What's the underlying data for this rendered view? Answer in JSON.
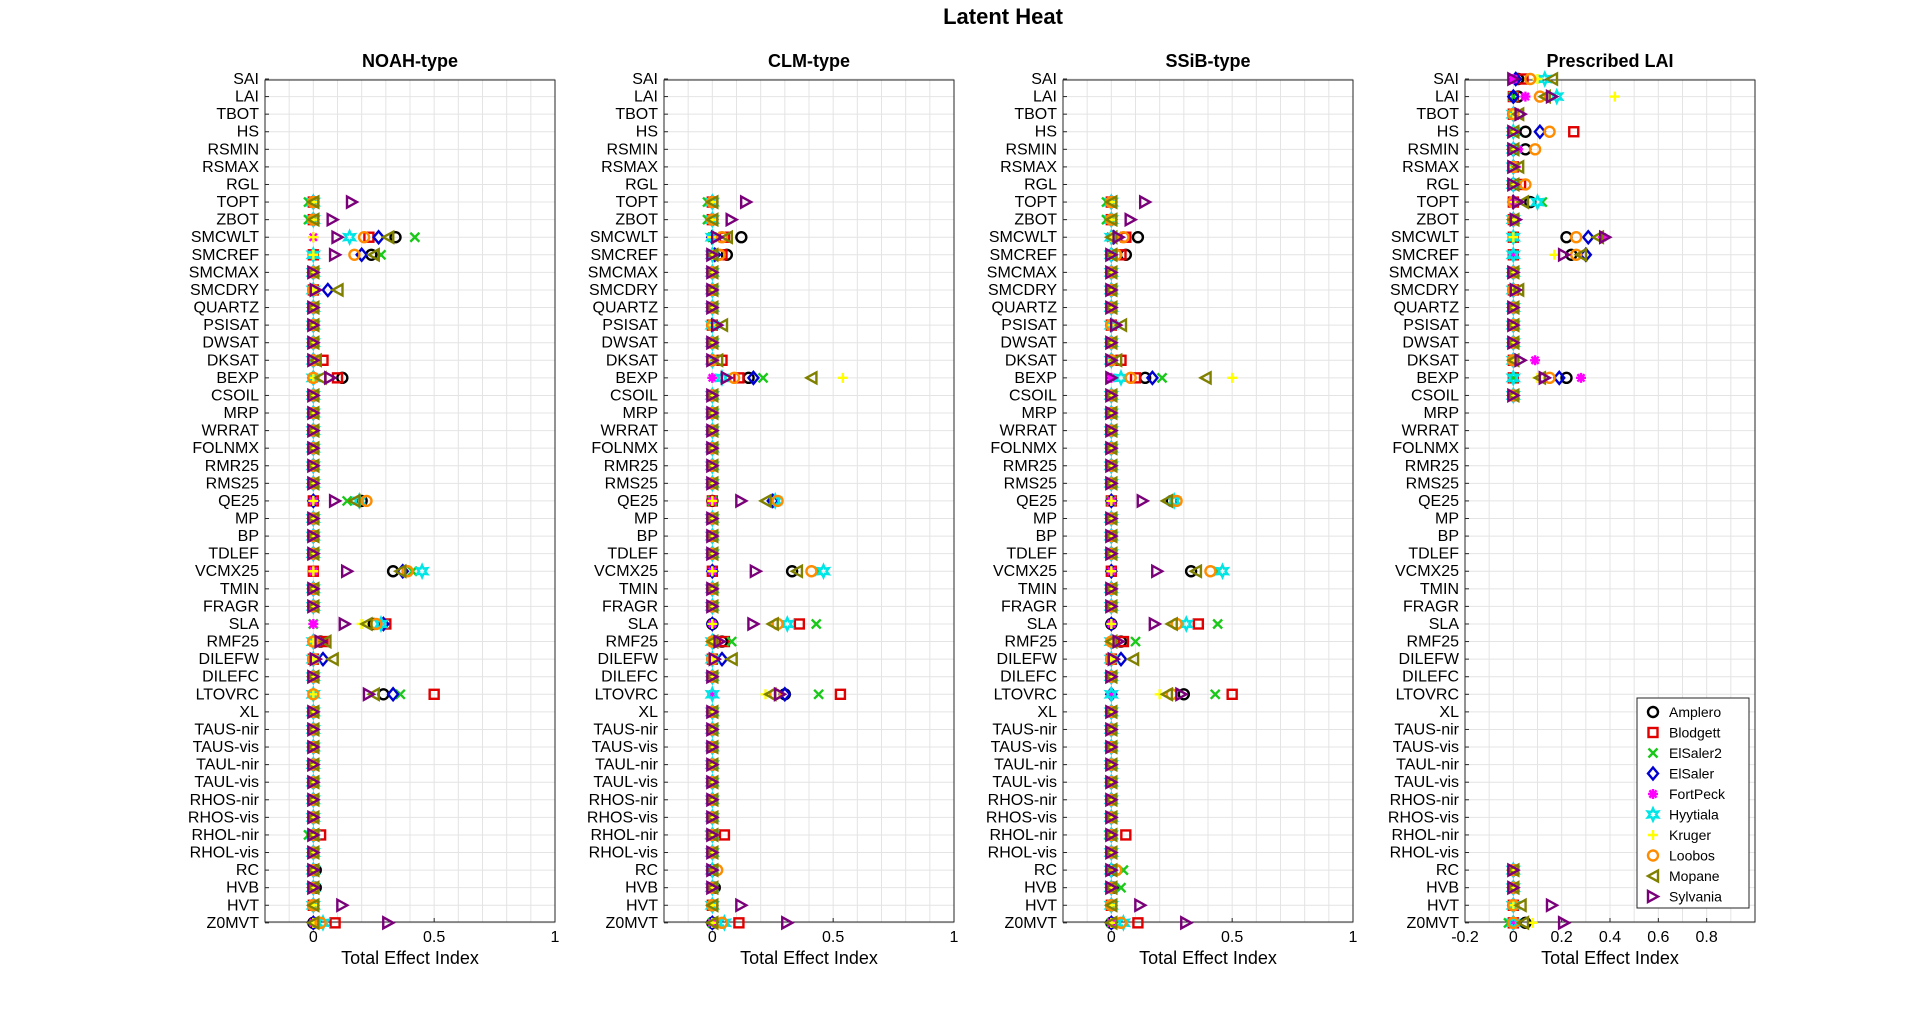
{
  "figure_title": "Latent Heat",
  "colors": {
    "Amplero": "#000000",
    "Blodgett": "#e00000",
    "ElSaler2": "#19c819",
    "ElSaler": "#0000d0",
    "FortPeck": "#ff00ff",
    "Hyytiala": "#00e6e6",
    "Kruger": "#ffff00",
    "Loobos": "#ff8c00",
    "Mopane": "#808000",
    "Sylvania": "#7a007a"
  },
  "markers": {
    "Amplero": "circle",
    "Blodgett": "square",
    "ElSaler2": "x",
    "ElSaler": "diamond",
    "FortPeck": "asterisk",
    "Hyytiala": "hexagram",
    "Kruger": "plus",
    "Loobos": "octagon",
    "Mopane": "triangle-left",
    "Sylvania": "triangle-right"
  },
  "legend": {
    "placement": "bottom-right of Prescribed LAI panel",
    "entries": [
      "Amplero",
      "Blodgett",
      "ElSaler2",
      "ElSaler",
      "FortPeck",
      "Hyytiala",
      "Kruger",
      "Loobos",
      "Mopane",
      "Sylvania"
    ]
  },
  "chart_data": [
    {
      "type": "scatter",
      "title": "NOAH-type",
      "xlabel": "Total Effect Index",
      "xlim": [
        -0.2,
        1
      ],
      "xticks": [
        0,
        0.5,
        1
      ],
      "xtick_labels": [
        "0",
        "0.5",
        "1"
      ],
      "show_ytick_labels": true,
      "grid": true,
      "categories": [
        "SAI",
        "LAI",
        "TBOT",
        "HS",
        "RSMIN",
        "RSMAX",
        "RGL",
        "TOPT",
        "ZBOT",
        "SMCWLT",
        "SMCREF",
        "SMCMAX",
        "SMCDRY",
        "QUARTZ",
        "PSISAT",
        "DWSAT",
        "DKSAT",
        "BEXP",
        "CSOIL",
        "MRP",
        "WRRAT",
        "FOLNMX",
        "RMR25",
        "RMS25",
        "QE25",
        "MP",
        "BP",
        "TDLEF",
        "VCMX25",
        "TMIN",
        "FRAGR",
        "SLA",
        "RMF25",
        "DILEFW",
        "DILEFC",
        "LTOVRC",
        "XL",
        "TAUS-nir",
        "TAUS-vis",
        "TAUL-nir",
        "TAUL-vis",
        "RHOS-nir",
        "RHOS-vis",
        "RHOL-nir",
        "RHOL-vis",
        "RC",
        "HVB",
        "HVT",
        "Z0MVT"
      ],
      "defaults": {
        "Amplero": 0,
        "Blodgett": 0,
        "ElSaler2": 0,
        "ElSaler": 0,
        "FortPeck": 0,
        "Hyytiala": 0,
        "Kruger": 0,
        "Loobos": 0,
        "Mopane": 0,
        "Sylvania": 0
      },
      "empty_categories": [
        "SAI",
        "LAI",
        "TBOT",
        "HS",
        "RSMIN",
        "RSMAX",
        "RGL"
      ],
      "values": {
        "TOPT": {
          "Sylvania": 0.16,
          "ElSaler2": -0.02,
          "Mopane": 0.0,
          "Loobos": 0.0
        },
        "ZBOT": {
          "Sylvania": 0.08,
          "ElSaler2": -0.02,
          "Mopane": 0.0,
          "Loobos": 0.0
        },
        "SMCWLT": {
          "Sylvania": 0.1,
          "Hyytiala": 0.15,
          "Loobos": 0.21,
          "Blodgett": 0.23,
          "ElSaler": 0.27,
          "Mopane": 0.31,
          "Amplero": 0.34,
          "ElSaler2": 0.42
        },
        "SMCREF": {
          "Sylvania": 0.09,
          "Loobos": 0.17,
          "ElSaler": 0.2,
          "Amplero": 0.24,
          "Mopane": 0.25,
          "ElSaler2": 0.28
        },
        "SMCDRY": {
          "ElSaler": 0.06,
          "Mopane": 0.1,
          "Sylvania": 0.01
        },
        "DKSAT": {
          "Blodgett": 0.04,
          "Mopane": 0.01
        },
        "BEXP": {
          "Mopane": 0.03,
          "Sylvania": 0.07,
          "Blodgett": 0.1,
          "Amplero": 0.12
        },
        "RMF25": {
          "Amplero": 0.03,
          "Blodgett": 0.04,
          "Mopane": 0.05,
          "Sylvania": 0.03
        },
        "DILEFW": {
          "Sylvania": 0.01,
          "ElSaler": 0.04,
          "Mopane": 0.08
        },
        "QE25": {
          "Sylvania": 0.09,
          "ElSaler2": 0.14,
          "Mopane": 0.17,
          "Hyytiala": 0.19,
          "Amplero": 0.2,
          "Loobos": 0.22
        },
        "VCMX25": {
          "Sylvania": 0.14,
          "Amplero": 0.33,
          "Mopane": 0.36,
          "ElSaler": 0.37,
          "Loobos": 0.39,
          "ElSaler2": 0.41,
          "Hyytiala": 0.45
        },
        "SLA": {
          "Sylvania": 0.13,
          "Kruger": 0.2,
          "Mopane": 0.22,
          "Amplero": 0.25,
          "Loobos": 0.26,
          "Hyytiala": 0.28,
          "ElSaler": 0.29,
          "Blodgett": 0.3
        },
        "LTOVRC": {
          "Sylvania": 0.23,
          "Mopane": 0.25,
          "Amplero": 0.29,
          "ElSaler": 0.33,
          "ElSaler2": 0.36,
          "Blodgett": 0.5
        },
        "RHOL-nir": {
          "Blodgett": 0.03,
          "ElSaler2": -0.02
        },
        "RC": {
          "Amplero": 0.01
        },
        "HVB": {
          "Amplero": 0.01
        },
        "HVT": {
          "Sylvania": 0.12,
          "Mopane": 0.0
        },
        "Z0MVT": {
          "Sylvania": 0.31,
          "Blodgett": 0.09,
          "Hyytiala": 0.04,
          "Loobos": 0.03,
          "ElSaler2": 0.02,
          "Mopane": 0.0
        }
      }
    },
    {
      "type": "scatter",
      "title": "CLM-type",
      "xlabel": "Total Effect Index",
      "xlim": [
        -0.2,
        1
      ],
      "xticks": [
        0,
        0.5,
        1
      ],
      "xtick_labels": [
        "0",
        "0.5",
        "1"
      ],
      "show_ytick_labels": true,
      "grid": true,
      "categories": [
        "SAI",
        "LAI",
        "TBOT",
        "HS",
        "RSMIN",
        "RSMAX",
        "RGL",
        "TOPT",
        "ZBOT",
        "SMCWLT",
        "SMCREF",
        "SMCMAX",
        "SMCDRY",
        "QUARTZ",
        "PSISAT",
        "DWSAT",
        "DKSAT",
        "BEXP",
        "CSOIL",
        "MRP",
        "WRRAT",
        "FOLNMX",
        "RMR25",
        "RMS25",
        "QE25",
        "MP",
        "BP",
        "TDLEF",
        "VCMX25",
        "TMIN",
        "FRAGR",
        "SLA",
        "RMF25",
        "DILEFW",
        "DILEFC",
        "LTOVRC",
        "XL",
        "TAUS-nir",
        "TAUS-vis",
        "TAUL-nir",
        "TAUL-vis",
        "RHOS-nir",
        "RHOS-vis",
        "RHOL-nir",
        "RHOL-vis",
        "RC",
        "HVB",
        "HVT",
        "Z0MVT"
      ],
      "defaults": {
        "Amplero": 0,
        "Blodgett": 0,
        "ElSaler2": 0,
        "ElSaler": 0,
        "FortPeck": 0,
        "Hyytiala": 0,
        "Kruger": 0,
        "Loobos": 0,
        "Mopane": 0,
        "Sylvania": 0
      },
      "empty_categories": [
        "SAI",
        "LAI",
        "TBOT",
        "HS",
        "RSMIN",
        "RSMAX",
        "RGL"
      ],
      "values": {
        "TOPT": {
          "Sylvania": 0.14,
          "ElSaler2": -0.02,
          "Mopane": 0.0,
          "Loobos": 0.0
        },
        "ZBOT": {
          "Sylvania": 0.08,
          "ElSaler2": -0.02,
          "Mopane": 0.0,
          "Loobos": 0.0
        },
        "SMCWLT": {
          "ElSaler": 0.0,
          "Sylvania": 0.02,
          "Loobos": 0.04,
          "Blodgett": 0.05,
          "Mopane": 0.06,
          "Amplero": 0.12
        },
        "SMCREF": {
          "ElSaler": 0.01,
          "Loobos": 0.03,
          "Blodgett": 0.04,
          "Amplero": 0.06
        },
        "PSISAT": {
          "Mopane": 0.04,
          "Sylvania": 0.02
        },
        "DKSAT": {
          "Blodgett": 0.04,
          "Mopane": 0.02
        },
        "BEXP": {
          "Hyytiala": 0.04,
          "Sylvania": 0.06,
          "Loobos": 0.09,
          "Blodgett": 0.11,
          "Amplero": 0.15,
          "ElSaler": 0.17,
          "ElSaler2": 0.21,
          "Mopane": 0.41,
          "Kruger": 0.54
        },
        "RMF25": {
          "Amplero": 0.04,
          "Blodgett": 0.05,
          "ElSaler2": 0.08,
          "Sylvania": 0.03
        },
        "DILEFW": {
          "ElSaler": 0.04,
          "Mopane": 0.08,
          "Sylvania": 0.01
        },
        "QE25": {
          "Sylvania": 0.12,
          "Mopane": 0.22,
          "ElSaler": 0.25,
          "Hyytiala": 0.26,
          "Loobos": 0.27
        },
        "VCMX25": {
          "Sylvania": 0.18,
          "Amplero": 0.33,
          "Mopane": 0.35,
          "Loobos": 0.41,
          "ElSaler2": 0.44,
          "Hyytiala": 0.46
        },
        "SLA": {
          "Sylvania": 0.17,
          "Mopane": 0.25,
          "Loobos": 0.27,
          "Hyytiala": 0.31,
          "Blodgett": 0.36,
          "ElSaler2": 0.43
        },
        "LTOVRC": {
          "Kruger": 0.22,
          "Mopane": 0.24,
          "Loobos": 0.26,
          "Sylvania": 0.28,
          "Amplero": 0.3,
          "ElSaler": 0.3,
          "ElSaler2": 0.44,
          "Blodgett": 0.53
        },
        "RHOL-nir": {
          "Blodgett": 0.05,
          "ElSaler2": -0.01
        },
        "RC": {
          "Loobos": 0.02
        },
        "HVB": {
          "Amplero": 0.01
        },
        "HVT": {
          "Sylvania": 0.12,
          "Mopane": 0.0
        },
        "Z0MVT": {
          "Sylvania": 0.31,
          "Blodgett": 0.11,
          "Hyytiala": 0.05,
          "Loobos": 0.04,
          "Mopane": 0.0
        }
      }
    },
    {
      "type": "scatter",
      "title": "SSiB-type",
      "xlabel": "Total Effect Index",
      "xlim": [
        -0.2,
        1
      ],
      "xticks": [
        0,
        0.5,
        1
      ],
      "xtick_labels": [
        "0",
        "0.5",
        "1"
      ],
      "show_ytick_labels": true,
      "grid": true,
      "categories": [
        "SAI",
        "LAI",
        "TBOT",
        "HS",
        "RSMIN",
        "RSMAX",
        "RGL",
        "TOPT",
        "ZBOT",
        "SMCWLT",
        "SMCREF",
        "SMCMAX",
        "SMCDRY",
        "QUARTZ",
        "PSISAT",
        "DWSAT",
        "DKSAT",
        "BEXP",
        "CSOIL",
        "MRP",
        "WRRAT",
        "FOLNMX",
        "RMR25",
        "RMS25",
        "QE25",
        "MP",
        "BP",
        "TDLEF",
        "VCMX25",
        "TMIN",
        "FRAGR",
        "SLA",
        "RMF25",
        "DILEFW",
        "DILEFC",
        "LTOVRC",
        "XL",
        "TAUS-nir",
        "TAUS-vis",
        "TAUL-nir",
        "TAUL-vis",
        "RHOS-nir",
        "RHOS-vis",
        "RHOL-nir",
        "RHOL-vis",
        "RC",
        "HVB",
        "HVT",
        "Z0MVT"
      ],
      "defaults": {
        "Amplero": 0,
        "Blodgett": 0,
        "ElSaler2": 0,
        "ElSaler": 0,
        "FortPeck": 0,
        "Hyytiala": 0,
        "Kruger": 0,
        "Loobos": 0,
        "Mopane": 0,
        "Sylvania": 0
      },
      "empty_categories": [
        "SAI",
        "LAI",
        "TBOT",
        "HS",
        "RSMIN",
        "RSMAX",
        "RGL"
      ],
      "values": {
        "TOPT": {
          "Sylvania": 0.14,
          "ElSaler2": -0.02,
          "Mopane": 0.0,
          "Loobos": 0.0
        },
        "ZBOT": {
          "Sylvania": 0.08,
          "ElSaler2": -0.02,
          "Mopane": 0.0,
          "Loobos": 0.0
        },
        "SMCWLT": {
          "ElSaler": 0.01,
          "Sylvania": 0.03,
          "Loobos": 0.05,
          "Blodgett": 0.06,
          "Amplero": 0.11
        },
        "SMCREF": {
          "Loobos": 0.02,
          "Blodgett": 0.04,
          "Amplero": 0.06
        },
        "PSISAT": {
          "Mopane": 0.04,
          "Sylvania": 0.02
        },
        "DKSAT": {
          "Blodgett": 0.04,
          "Mopane": 0.02
        },
        "BEXP": {
          "Hyytiala": 0.04,
          "Loobos": 0.08,
          "Blodgett": 0.1,
          "Amplero": 0.14,
          "ElSaler": 0.17,
          "ElSaler2": 0.21,
          "Mopane": 0.39,
          "Kruger": 0.5
        },
        "RMF25": {
          "Amplero": 0.04,
          "Blodgett": 0.05,
          "ElSaler2": 0.1,
          "Sylvania": 0.03
        },
        "DILEFW": {
          "ElSaler": 0.04,
          "Mopane": 0.09,
          "Sylvania": 0.01
        },
        "QE25": {
          "Sylvania": 0.13,
          "Mopane": 0.23,
          "Amplero": 0.25,
          "Hyytiala": 0.26,
          "Loobos": 0.27
        },
        "VCMX25": {
          "Sylvania": 0.19,
          "Amplero": 0.33,
          "Mopane": 0.35,
          "Loobos": 0.41,
          "ElSaler2": 0.44,
          "Hyytiala": 0.46
        },
        "SLA": {
          "Sylvania": 0.18,
          "Mopane": 0.25,
          "Loobos": 0.27,
          "Hyytiala": 0.31,
          "Blodgett": 0.36,
          "ElSaler2": 0.44
        },
        "LTOVRC": {
          "Kruger": 0.2,
          "Mopane": 0.23,
          "Loobos": 0.25,
          "Sylvania": 0.29,
          "Amplero": 0.3,
          "ElSaler2": 0.43,
          "Blodgett": 0.5
        },
        "RHOL-nir": {
          "Blodgett": 0.06,
          "ElSaler2": -0.01
        },
        "RC": {
          "ElSaler2": 0.05,
          "Loobos": 0.02
        },
        "HVB": {
          "ElSaler2": 0.04,
          "Amplero": 0.01
        },
        "HVT": {
          "Sylvania": 0.12,
          "Mopane": 0.0
        },
        "Z0MVT": {
          "Sylvania": 0.31,
          "Blodgett": 0.11,
          "Hyytiala": 0.05,
          "Loobos": 0.04,
          "Mopane": 0.0
        }
      }
    },
    {
      "type": "scatter",
      "title": "Prescribed LAI",
      "xlabel": "Total Effect Index",
      "xlim": [
        -0.2,
        1
      ],
      "xticks": [
        -0.2,
        0,
        0.2,
        0.4,
        0.6,
        0.8
      ],
      "xtick_labels": [
        "-0.2",
        "0",
        "0.2",
        "0.4",
        "0.6",
        "0.8"
      ],
      "show_ytick_labels": true,
      "grid": true,
      "categories": [
        "SAI",
        "LAI",
        "TBOT",
        "HS",
        "RSMIN",
        "RSMAX",
        "RGL",
        "TOPT",
        "ZBOT",
        "SMCWLT",
        "SMCREF",
        "SMCMAX",
        "SMCDRY",
        "QUARTZ",
        "PSISAT",
        "DWSAT",
        "DKSAT",
        "BEXP",
        "CSOIL",
        "MRP",
        "WRRAT",
        "FOLNMX",
        "RMR25",
        "RMS25",
        "QE25",
        "MP",
        "BP",
        "TDLEF",
        "VCMX25",
        "TMIN",
        "FRAGR",
        "SLA",
        "RMF25",
        "DILEFW",
        "DILEFC",
        "LTOVRC",
        "XL",
        "TAUS-nir",
        "TAUS-vis",
        "TAUL-nir",
        "TAUL-vis",
        "RHOS-nir",
        "RHOS-vis",
        "RHOL-nir",
        "RHOL-vis",
        "RC",
        "HVB",
        "HVT",
        "Z0MVT"
      ],
      "defaults": {
        "Amplero": 0,
        "Blodgett": 0,
        "ElSaler2": 0,
        "ElSaler": 0,
        "FortPeck": 0,
        "Hyytiala": 0,
        "Kruger": 0,
        "Loobos": 0,
        "Mopane": 0,
        "Sylvania": 0
      },
      "empty_categories": [
        "MRP",
        "WRRAT",
        "FOLNMX",
        "RMR25",
        "RMS25",
        "QE25",
        "MP",
        "BP",
        "TDLEF",
        "VCMX25",
        "TMIN",
        "FRAGR",
        "SLA",
        "RMF25",
        "DILEFW",
        "DILEFC",
        "LTOVRC",
        "XL",
        "TAUS-nir",
        "TAUS-vis",
        "TAUL-nir",
        "TAUL-vis",
        "RHOS-nir",
        "RHOS-vis",
        "RHOL-nir",
        "RHOL-vis"
      ],
      "values": {
        "SAI": {
          "ElSaler": 0.01,
          "Amplero": 0.02,
          "Blodgett": 0.04,
          "Loobos": 0.07,
          "Kruger": 0.1,
          "Hyytiala": 0.13,
          "Mopane": 0.16,
          "Sylvania": 0.0
        },
        "LAI": {
          "Amplero": 0.02,
          "FortPeck": 0.05,
          "Loobos": 0.11,
          "Mopane": 0.13,
          "Sylvania": 0.16,
          "Hyytiala": 0.18,
          "Kruger": 0.42
        },
        "TBOT": {
          "Mopane": 0.02,
          "Sylvania": 0.03,
          "ElSaler": 0.0
        },
        "HS": {
          "FortPeck": 0.0,
          "Amplero": 0.05,
          "ElSaler": 0.11,
          "Loobos": 0.15,
          "Blodgett": 0.25
        },
        "RSMIN": {
          "ElSaler": 0.0,
          "FortPeck": 0.02,
          "Amplero": 0.05,
          "Loobos": 0.09
        },
        "RSMAX": {
          "Sylvania": 0.0,
          "FortPeck": 0.01,
          "Mopane": 0.02
        },
        "RGL": {
          "FortPeck": 0.0,
          "Blodgett": 0.03,
          "Loobos": 0.05
        },
        "TOPT": {
          "FortPeck": 0.0,
          "ElSaler2": 0.12,
          "Hyytiala": 0.1,
          "Mopane": 0.04,
          "Sylvania": 0.02,
          "Amplero": 0.07
        },
        "ZBOT": {
          "ElSaler": 0.0,
          "Sylvania": 0.01
        },
        "SMCWLT": {
          "Amplero": 0.22,
          "Loobos": 0.26,
          "ElSaler": 0.31,
          "Mopane": 0.35,
          "Amplero2": 0.36,
          "FortPeck": 0.37,
          "Sylvania": 0.38
        },
        "SMCREF": {
          "Kruger": 0.17,
          "Sylvania": 0.21,
          "Amplero": 0.24,
          "Loobos": 0.26,
          "Mopane": 0.28,
          "ElSaler": 0.3
        },
        "SMCMAX": {
          "Sylvania": 0.0
        },
        "SMCDRY": {
          "Mopane": 0.02,
          "Sylvania": 0.01
        },
        "QUARTZ": {
          "Sylvania": 0.0
        },
        "PSISAT": {
          "Sylvania": 0.0
        },
        "DWSAT": {
          "Sylvania": 0.0
        },
        "DKSAT": {
          "Sylvania": 0.03,
          "FortPeck": 0.09
        },
        "BEXP": {
          "Kruger": 0.1,
          "Mopane": 0.11,
          "Sylvania": 0.13,
          "Loobos": 0.15,
          "ElSaler": 0.19,
          "Amplero": 0.22,
          "FortPeck": 0.28
        },
        "CSOIL": {
          "Sylvania": 0.0
        },
        "RC": {
          "Sylvania": 0.0
        },
        "HVB": {
          "Sylvania": 0.0
        },
        "HVT": {
          "FortPeck": 0.0,
          "Mopane": 0.03,
          "Sylvania": 0.16
        },
        "Z0MVT": {
          "ElSaler2": -0.02,
          "FortPeck": 0.01,
          "Mopane": 0.04,
          "Amplero": 0.05,
          "Kruger": 0.08,
          "Sylvania": 0.21
        }
      }
    }
  ]
}
